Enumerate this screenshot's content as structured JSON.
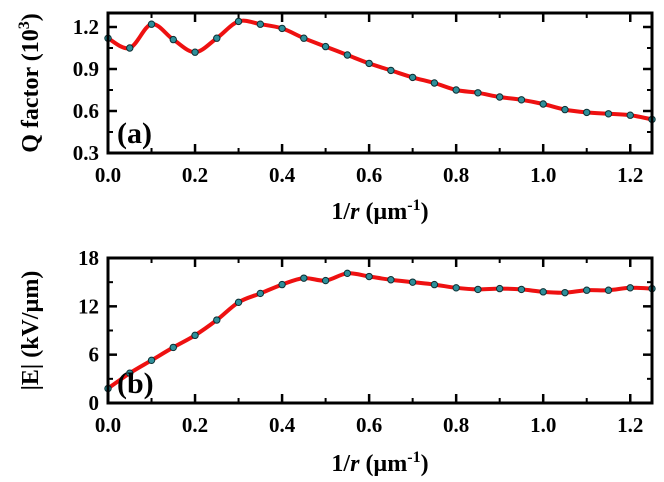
{
  "chart_data": [
    {
      "type": "line",
      "panel_label": "(a)",
      "xlabel": "1/r (µm-1)",
      "ylabel": "Q factor (10^3)",
      "xlim": [
        0.0,
        1.25
      ],
      "ylim": [
        0.3,
        1.3
      ],
      "xticks": [
        "0.0",
        "0.2",
        "0.4",
        "0.6",
        "0.8",
        "1.0",
        "1.2"
      ],
      "yticks": [
        "0.3",
        "0.6",
        "0.9",
        "1.2"
      ],
      "grid": false,
      "line_color": "#ee1111",
      "marker_color": "#2f8f9a",
      "x": [
        0.0,
        0.05,
        0.1,
        0.15,
        0.2,
        0.25,
        0.3,
        0.35,
        0.4,
        0.45,
        0.5,
        0.55,
        0.6,
        0.65,
        0.7,
        0.75,
        0.8,
        0.85,
        0.9,
        0.95,
        1.0,
        1.05,
        1.1,
        1.15,
        1.2,
        1.25
      ],
      "y": [
        1.12,
        1.05,
        1.22,
        1.11,
        1.02,
        1.12,
        1.24,
        1.22,
        1.19,
        1.12,
        1.06,
        1.0,
        0.94,
        0.89,
        0.84,
        0.8,
        0.75,
        0.73,
        0.7,
        0.68,
        0.65,
        0.61,
        0.59,
        0.58,
        0.57,
        0.54
      ]
    },
    {
      "type": "line",
      "panel_label": "(b)",
      "xlabel": "1/r (µm-1)",
      "ylabel": "|E| (kV/µm)",
      "xlim": [
        0.0,
        1.25
      ],
      "ylim": [
        0,
        18
      ],
      "xticks": [
        "0.0",
        "0.2",
        "0.4",
        "0.6",
        "0.8",
        "1.0",
        "1.2"
      ],
      "yticks": [
        "0",
        "6",
        "12",
        "18"
      ],
      "grid": false,
      "line_color": "#ee1111",
      "marker_color": "#2f8f9a",
      "x": [
        0.0,
        0.05,
        0.1,
        0.15,
        0.2,
        0.25,
        0.3,
        0.35,
        0.4,
        0.45,
        0.5,
        0.55,
        0.6,
        0.65,
        0.7,
        0.75,
        0.8,
        0.85,
        0.9,
        0.95,
        1.0,
        1.05,
        1.1,
        1.15,
        1.2,
        1.25
      ],
      "y": [
        1.8,
        3.7,
        5.3,
        6.9,
        8.4,
        10.3,
        12.5,
        13.6,
        14.7,
        15.5,
        15.2,
        16.1,
        15.7,
        15.3,
        15.0,
        14.7,
        14.3,
        14.1,
        14.2,
        14.1,
        13.8,
        13.7,
        14.0,
        14.0,
        14.3,
        14.2
      ]
    }
  ]
}
